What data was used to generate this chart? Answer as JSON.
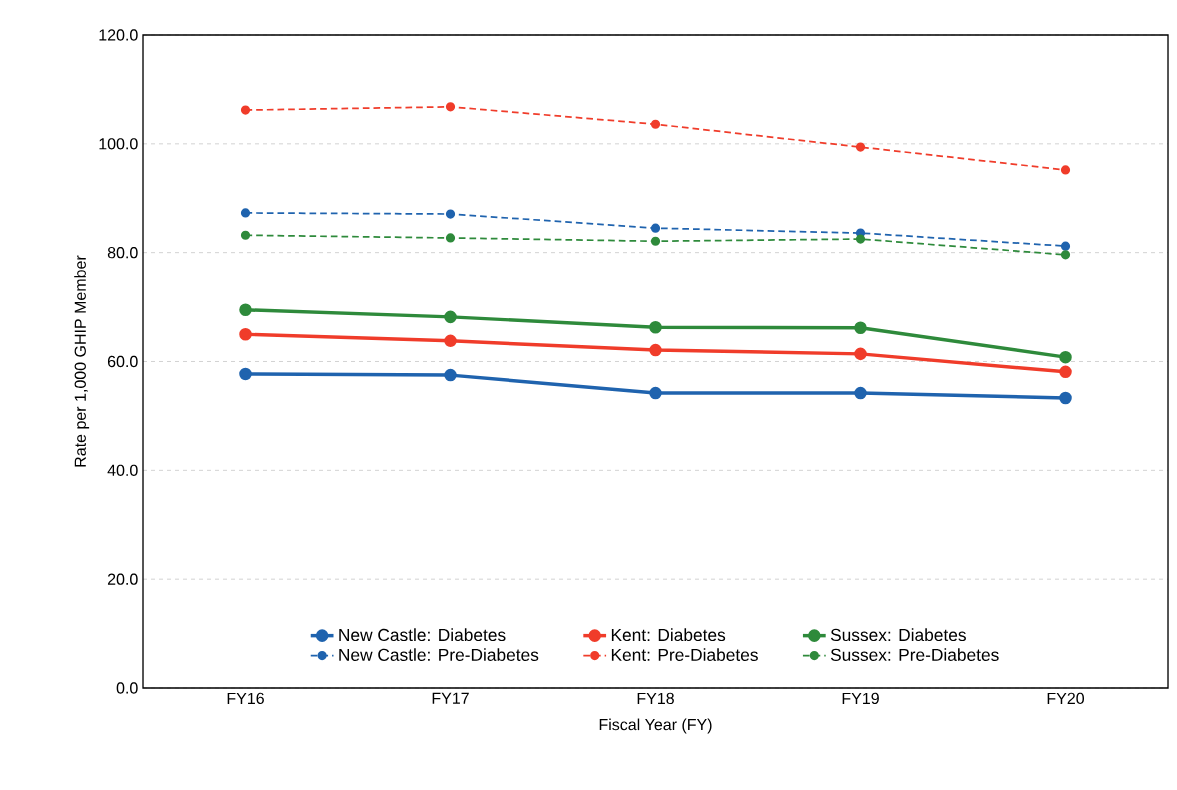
{
  "chart_data": {
    "type": "line",
    "xlabel": "Fiscal Year (FY)",
    "ylabel": "Rate per 1,000 GHIP Member",
    "categories": [
      "FY16",
      "FY17",
      "FY18",
      "FY19",
      "FY20"
    ],
    "series": [
      {
        "name": "New Castle: Diabetes",
        "color": "#1f63ae",
        "line_style": "solid",
        "values": [
          57.7,
          57.5,
          54.2,
          54.2,
          53.3
        ]
      },
      {
        "name": "Kent: Diabetes",
        "color": "#f03c2a",
        "line_style": "solid",
        "values": [
          65.0,
          63.8,
          62.1,
          61.4,
          58.1
        ]
      },
      {
        "name": "Sussex: Diabetes",
        "color": "#2e8a3b",
        "line_style": "solid",
        "values": [
          69.5,
          68.2,
          66.3,
          66.2,
          60.8
        ]
      },
      {
        "name": "New Castle: Pre-Diabetes",
        "color": "#1f63ae",
        "line_style": "dashed",
        "values": [
          87.3,
          87.1,
          84.5,
          83.6,
          81.2
        ]
      },
      {
        "name": "Kent: Pre-Diabetes",
        "color": "#f03c2a",
        "line_style": "dashed",
        "values": [
          106.2,
          106.8,
          103.6,
          99.4,
          95.2
        ]
      },
      {
        "name": "Sussex: Pre-Diabetes",
        "color": "#2e8a3b",
        "line_style": "dashed",
        "values": [
          83.2,
          82.7,
          82.1,
          82.5,
          79.6
        ]
      }
    ],
    "ylim": [
      0,
      120
    ],
    "yticks": [
      {
        "value": 0,
        "label": "0.0"
      },
      {
        "value": 20,
        "label": "20.0"
      },
      {
        "value": 40,
        "label": "40.0"
      },
      {
        "value": 60,
        "label": "60.0"
      },
      {
        "value": 80,
        "label": "80.0"
      },
      {
        "value": 100,
        "label": "100.0"
      },
      {
        "value": 120,
        "label": "120.0"
      }
    ],
    "grid": "y",
    "legend": "bottom",
    "marker": "circle"
  }
}
